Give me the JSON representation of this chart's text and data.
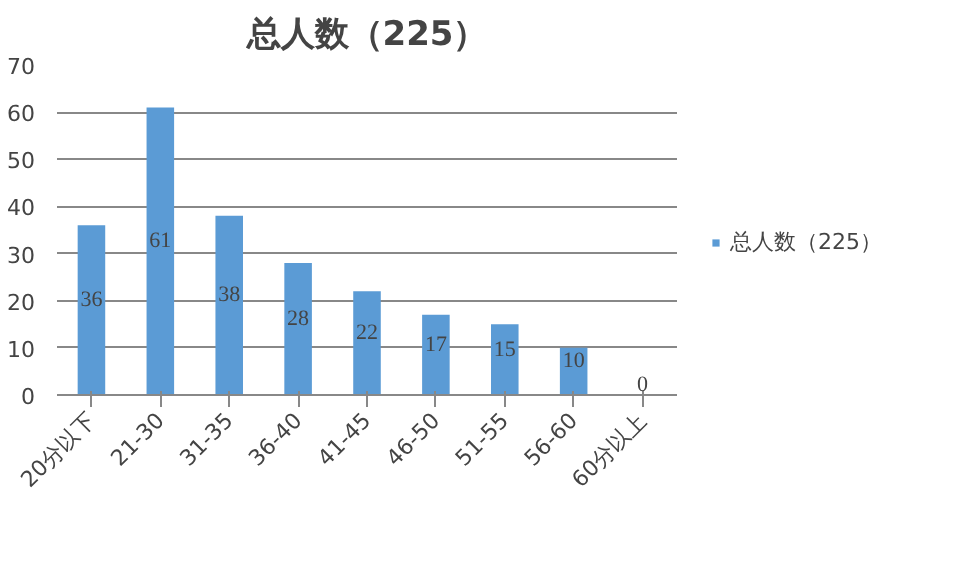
{
  "chart_data": {
    "type": "bar",
    "title": "总人数（225）",
    "categories": [
      "20分以下",
      "21-30",
      "31-35",
      "36-40",
      "41-45",
      "46-50",
      "51-55",
      "56-60",
      "60分以上"
    ],
    "series": [
      {
        "name": "总人数（225）",
        "color": "#5b9bd5",
        "values": [
          36,
          61,
          38,
          28,
          22,
          17,
          15,
          10,
          0
        ]
      }
    ],
    "ylim": [
      0,
      70
    ],
    "yticks": [
      0,
      10,
      20,
      30,
      40,
      50,
      60,
      70
    ],
    "grid": "y",
    "legend": "right",
    "data_labels": true
  }
}
